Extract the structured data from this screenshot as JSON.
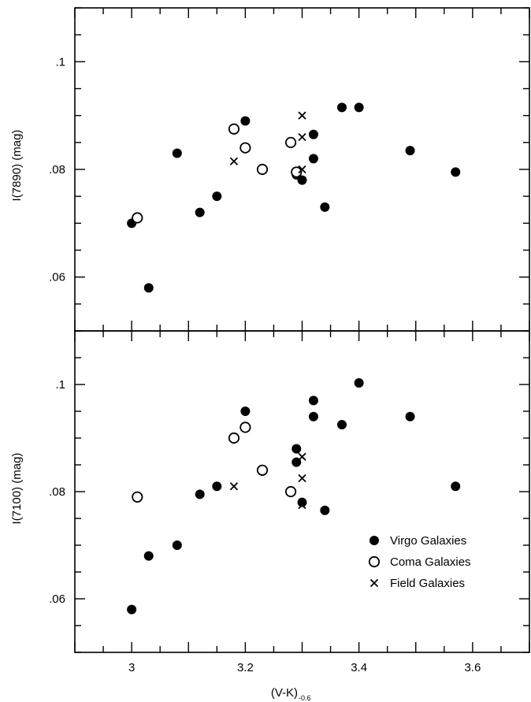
{
  "chart_data": [
    {
      "type": "scatter",
      "ylabel": "I(7890) (mag)",
      "xlim": [
        2.9,
        3.7
      ],
      "ylim": [
        0.05,
        0.11
      ],
      "yticks": [
        0.06,
        0.08,
        0.1
      ],
      "ytick_labels": [
        ".06",
        ".08",
        ".1"
      ],
      "series": [
        {
          "name": "Virgo Galaxies",
          "marker": "filled-circle",
          "points": [
            [
              3.0,
              0.07
            ],
            [
              3.03,
              0.058
            ],
            [
              3.08,
              0.083
            ],
            [
              3.12,
              0.072
            ],
            [
              3.15,
              0.075
            ],
            [
              3.2,
              0.089
            ],
            [
              3.29,
              0.079
            ],
            [
              3.3,
              0.078
            ],
            [
              3.32,
              0.0865
            ],
            [
              3.32,
              0.082
            ],
            [
              3.34,
              0.073
            ],
            [
              3.37,
              0.0915
            ],
            [
              3.4,
              0.0915
            ],
            [
              3.49,
              0.0835
            ],
            [
              3.57,
              0.0795
            ]
          ]
        },
        {
          "name": "Coma Galaxies",
          "marker": "open-circle",
          "points": [
            [
              3.01,
              0.071
            ],
            [
              3.18,
              0.0875
            ],
            [
              3.2,
              0.084
            ],
            [
              3.23,
              0.08
            ],
            [
              3.28,
              0.085
            ],
            [
              3.29,
              0.0795
            ]
          ]
        },
        {
          "name": "Field Galaxies",
          "marker": "cross",
          "points": [
            [
              3.18,
              0.0815
            ],
            [
              3.3,
              0.09
            ],
            [
              3.3,
              0.086
            ],
            [
              3.3,
              0.08
            ]
          ]
        }
      ]
    },
    {
      "type": "scatter",
      "ylabel": "I(7100) (mag)",
      "xlabel": "(V-K)",
      "xlabel_sub": "-0.6",
      "xlim": [
        2.9,
        3.7
      ],
      "ylim": [
        0.05,
        0.11
      ],
      "xticks": [
        3.0,
        3.2,
        3.4,
        3.6
      ],
      "xtick_labels": [
        "3",
        "3.2",
        "3.4",
        "3.6"
      ],
      "yticks": [
        0.06,
        0.08,
        0.1
      ],
      "ytick_labels": [
        ".06",
        ".08",
        ".1"
      ],
      "legend": "bottom-right",
      "series": [
        {
          "name": "Virgo Galaxies",
          "marker": "filled-circle",
          "points": [
            [
              3.0,
              0.058
            ],
            [
              3.03,
              0.068
            ],
            [
              3.08,
              0.07
            ],
            [
              3.12,
              0.0795
            ],
            [
              3.15,
              0.081
            ],
            [
              3.2,
              0.095
            ],
            [
              3.29,
              0.088
            ],
            [
              3.29,
              0.0855
            ],
            [
              3.3,
              0.078
            ],
            [
              3.32,
              0.097
            ],
            [
              3.32,
              0.094
            ],
            [
              3.34,
              0.0765
            ],
            [
              3.37,
              0.0925
            ],
            [
              3.4,
              0.1003
            ],
            [
              3.49,
              0.094
            ],
            [
              3.57,
              0.081
            ]
          ]
        },
        {
          "name": "Coma Galaxies",
          "marker": "open-circle",
          "points": [
            [
              3.01,
              0.079
            ],
            [
              3.18,
              0.09
            ],
            [
              3.2,
              0.092
            ],
            [
              3.23,
              0.084
            ],
            [
              3.28,
              0.08
            ]
          ]
        },
        {
          "name": "Field Galaxies",
          "marker": "cross",
          "points": [
            [
              3.18,
              0.081
            ],
            [
              3.3,
              0.0865
            ],
            [
              3.3,
              0.0825
            ],
            [
              3.3,
              0.0775
            ]
          ]
        }
      ]
    }
  ]
}
